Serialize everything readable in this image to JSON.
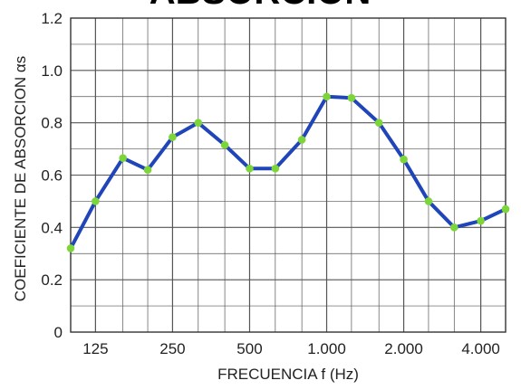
{
  "title": "ABSORCIÓN",
  "chart_data": {
    "type": "line",
    "title": "ABSORCIÓN",
    "xlabel": "FRECUENCIA f (Hz)",
    "ylabel": "COEFICIENTE DE ABSORCION αs",
    "x_scale": "log",
    "x_ticks": [
      125,
      250,
      500,
      1000,
      2000,
      4000
    ],
    "x_tick_labels": [
      "125",
      "250",
      "500",
      "1.000",
      "2.000",
      "4.000"
    ],
    "xlim": [
      100,
      5000
    ],
    "y_ticks": [
      0,
      0.2,
      0.4,
      0.6,
      0.8,
      1.0,
      1.2
    ],
    "y_tick_labels": [
      "0",
      "0.2",
      "0.4",
      "0.6",
      "0.8",
      "1.0",
      "1.2"
    ],
    "ylim": [
      0,
      1.2
    ],
    "grid": true,
    "colors": {
      "line": "#1f45b8",
      "marker": "#7cd63a",
      "grid": "#555555",
      "frame": "#333333"
    },
    "series": [
      {
        "x": [
          100,
          125,
          160,
          200,
          250,
          315,
          400,
          500,
          630,
          800,
          1000,
          1250,
          1600,
          2000,
          2500,
          3150,
          4000,
          5000
        ],
        "y": [
          0.32,
          0.5,
          0.665,
          0.62,
          0.745,
          0.8,
          0.715,
          0.625,
          0.625,
          0.735,
          0.9,
          0.895,
          0.8,
          0.66,
          0.5,
          0.4,
          0.425,
          0.47
        ]
      }
    ]
  }
}
